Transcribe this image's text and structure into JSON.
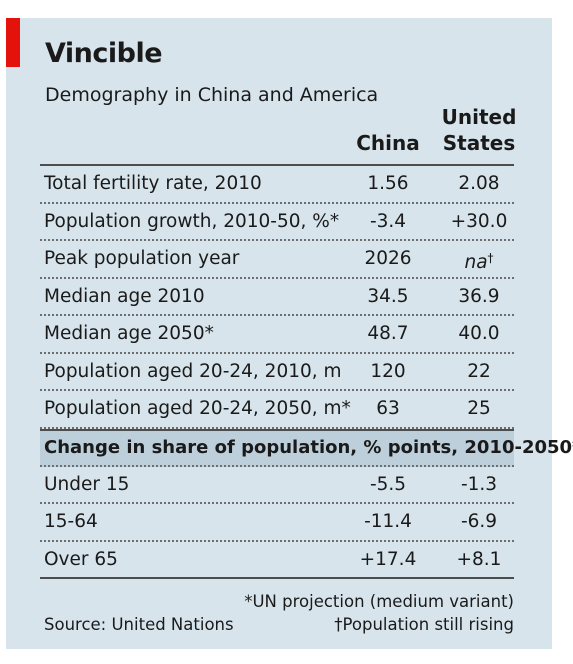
{
  "title": "Vincible",
  "subtitle": "Demography in China and America",
  "columns": {
    "china": "China",
    "us_line1": "United",
    "us_line2": "States"
  },
  "rows": [
    {
      "label": "Total fertility rate, 2010",
      "china": "1.56",
      "us": "2.08"
    },
    {
      "label": "Population growth, 2010-50, %*",
      "china": "-3.4",
      "us": "+30.0"
    },
    {
      "label": "Peak population year",
      "china": "2026",
      "us": "na",
      "us_mark": "†"
    },
    {
      "label": "Median age 2010",
      "china": "34.5",
      "us": "36.9"
    },
    {
      "label": "Median age 2050*",
      "china": "48.7",
      "us": "40.0"
    },
    {
      "label": "Population aged 20-24, 2010, m",
      "china": "120",
      "us": "22"
    },
    {
      "label": "Population aged 20-24, 2050, m*",
      "china": "63",
      "us": "25"
    }
  ],
  "section_header": "Change in share of population, % points, 2010-2050*",
  "section_rows": [
    {
      "label": "Under 15",
      "china": "-5.5",
      "us": "-1.3"
    },
    {
      "label": "15-64",
      "china": "-11.4",
      "us": "-6.9"
    },
    {
      "label": "Over 65",
      "china": "+17.4",
      "us": "+8.1"
    }
  ],
  "footnotes": {
    "un_projection": "*UN projection (medium variant)",
    "source": "Source: United Nations",
    "still_rising": "†Population still rising"
  },
  "colors": {
    "panel": "#d7e4ec",
    "accent": "#e3120b",
    "subhead": "#bccfdb"
  },
  "chart_data": {
    "type": "table",
    "title": "Vincible",
    "subtitle": "Demography in China and America",
    "columns": [
      "China",
      "United States"
    ],
    "rows": [
      {
        "label": "Total fertility rate, 2010",
        "values": [
          1.56,
          2.08
        ]
      },
      {
        "label": "Population growth, 2010-50, %*",
        "values": [
          -3.4,
          30.0
        ]
      },
      {
        "label": "Peak population year",
        "values": [
          2026,
          "na†"
        ]
      },
      {
        "label": "Median age 2010",
        "values": [
          34.5,
          36.9
        ]
      },
      {
        "label": "Median age 2050*",
        "values": [
          48.7,
          40.0
        ]
      },
      {
        "label": "Population aged 20-24, 2010, m",
        "values": [
          120,
          22
        ]
      },
      {
        "label": "Population aged 20-24, 2050, m*",
        "values": [
          63,
          25
        ]
      }
    ],
    "sections": [
      {
        "header": "Change in share of population, % points, 2010-2050*",
        "rows": [
          {
            "label": "Under 15",
            "values": [
              -5.5,
              -1.3
            ]
          },
          {
            "label": "15-64",
            "values": [
              -11.4,
              -6.9
            ]
          },
          {
            "label": "Over 65",
            "values": [
              17.4,
              8.1
            ]
          }
        ]
      }
    ]
  }
}
